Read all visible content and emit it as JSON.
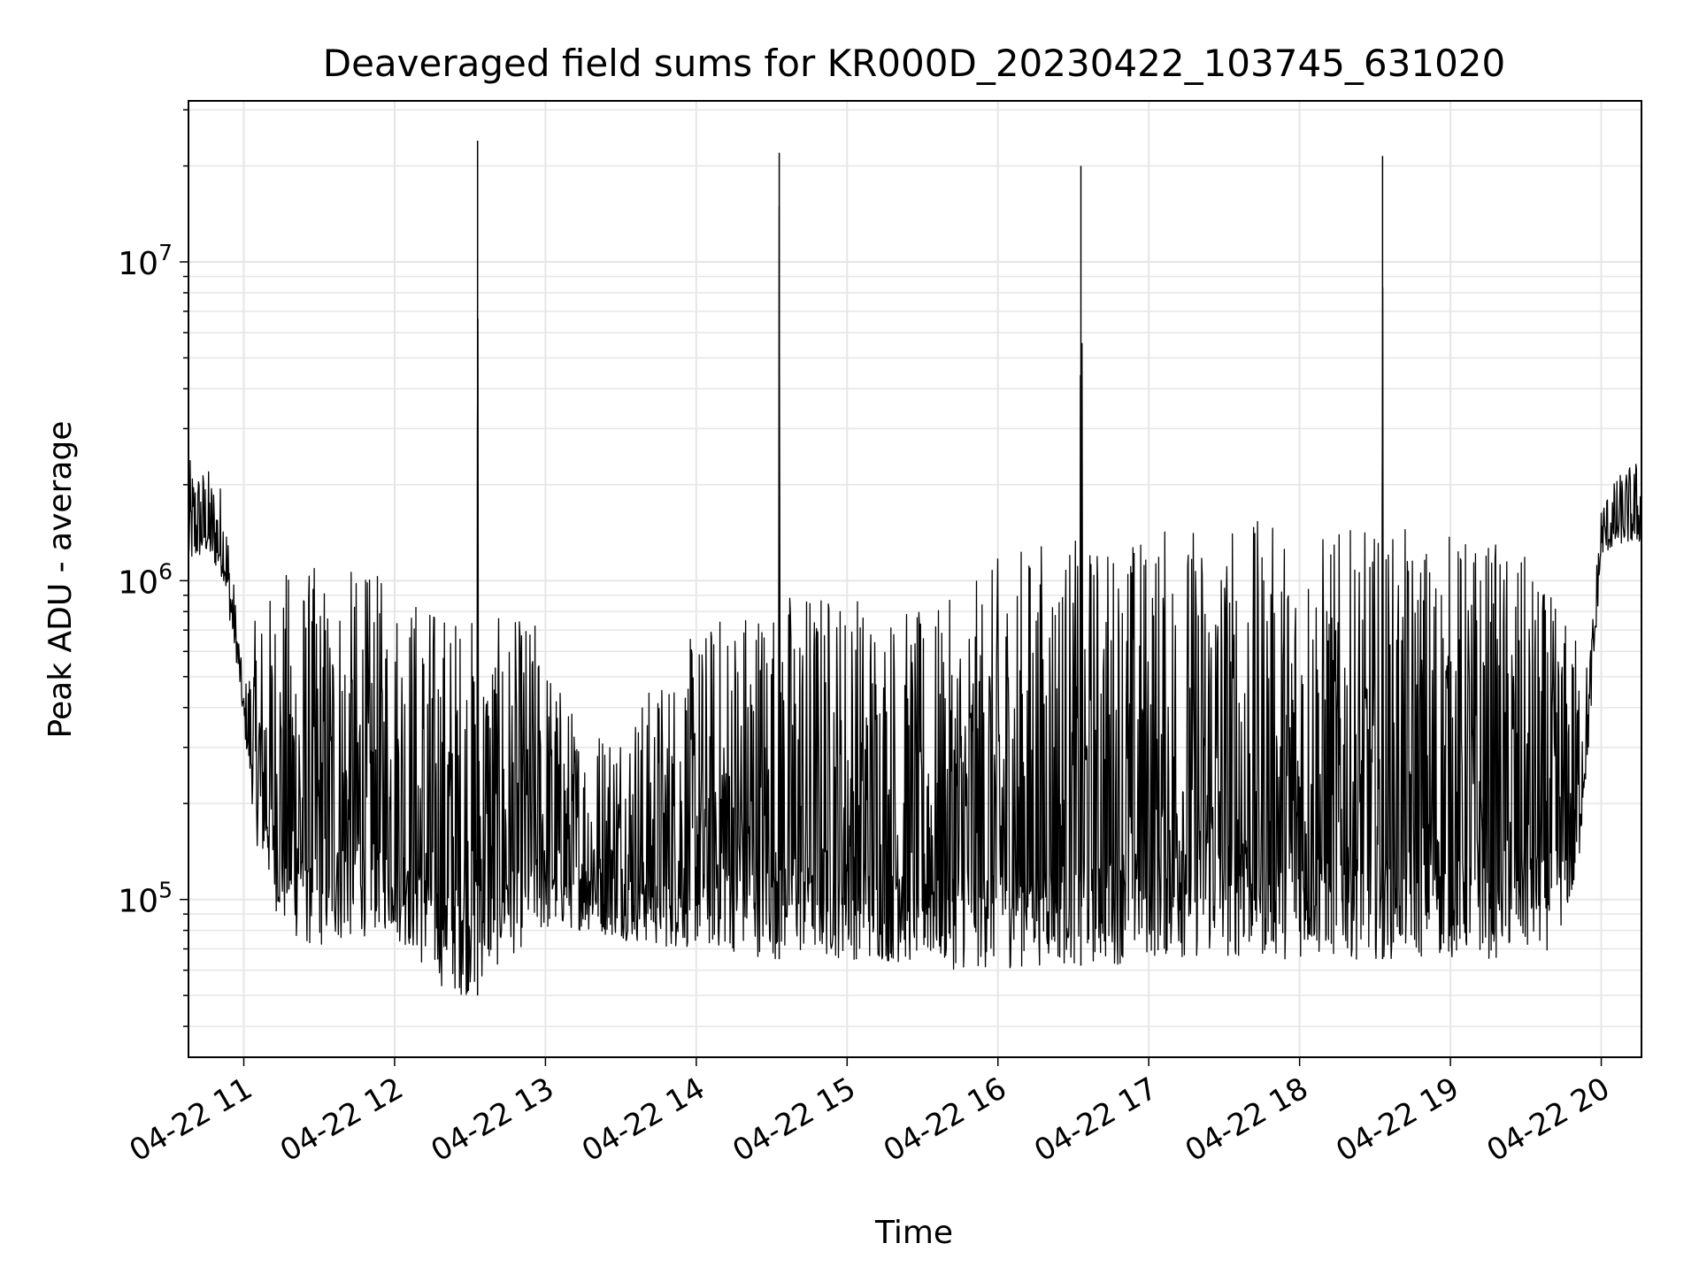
{
  "chart_data": {
    "type": "line",
    "title": "Deaveraged field sums for KR000D_20230422_103745_631020",
    "xlabel": "Time",
    "ylabel": "Peak ADU - average",
    "x_axis": {
      "kind": "time",
      "range": [
        "2023-04-22T10:38",
        "2023-04-22T20:16"
      ],
      "ticks": [
        {
          "label": "04-22 11",
          "time": "2023-04-22T11:00"
        },
        {
          "label": "04-22 12",
          "time": "2023-04-22T12:00"
        },
        {
          "label": "04-22 13",
          "time": "2023-04-22T13:00"
        },
        {
          "label": "04-22 14",
          "time": "2023-04-22T14:00"
        },
        {
          "label": "04-22 15",
          "time": "2023-04-22T15:00"
        },
        {
          "label": "04-22 16",
          "time": "2023-04-22T16:00"
        },
        {
          "label": "04-22 17",
          "time": "2023-04-22T17:00"
        },
        {
          "label": "04-22 18",
          "time": "2023-04-22T18:00"
        },
        {
          "label": "04-22 19",
          "time": "2023-04-22T19:00"
        },
        {
          "label": "04-22 20",
          "time": "2023-04-22T20:00"
        }
      ]
    },
    "y_axis": {
      "scale": "log",
      "range": [
        32000,
        32000000
      ],
      "ticks": [
        {
          "base": "10",
          "exp": "5",
          "value": 100000
        },
        {
          "base": "10",
          "exp": "6",
          "value": 1000000
        },
        {
          "base": "10",
          "exp": "7",
          "value": 10000000
        }
      ]
    },
    "grid": true,
    "line_color": "#000000",
    "grid_color": "#e6e6e6",
    "series": [
      {
        "x": [
          "2023-04-22T10:38",
          "2023-04-22T10:45",
          "2023-04-22T10:52",
          "2023-04-22T10:55",
          "2023-04-22T10:58",
          "2023-04-22T11:00",
          "2023-04-22T11:05",
          "2023-04-22T11:15",
          "2023-04-22T11:25",
          "2023-04-22T11:35",
          "2023-04-22T11:45",
          "2023-04-22T11:55",
          "2023-04-22T12:05",
          "2023-04-22T12:15",
          "2023-04-22T12:25",
          "2023-04-22T12:32",
          "2023-04-22T12:33",
          "2023-04-22T12:34",
          "2023-04-22T12:45",
          "2023-04-22T12:55",
          "2023-04-22T13:05",
          "2023-04-22T13:15",
          "2023-04-22T13:30",
          "2023-04-22T13:45",
          "2023-04-22T14:00",
          "2023-04-22T14:15",
          "2023-04-22T14:30",
          "2023-04-22T14:32",
          "2023-04-22T14:33",
          "2023-04-22T14:34",
          "2023-04-22T14:45",
          "2023-04-22T15:00",
          "2023-04-22T15:15",
          "2023-04-22T15:30",
          "2023-04-22T15:45",
          "2023-04-22T16:00",
          "2023-04-22T16:15",
          "2023-04-22T16:30",
          "2023-04-22T16:32",
          "2023-04-22T16:33",
          "2023-04-22T16:34",
          "2023-04-22T16:45",
          "2023-04-22T17:00",
          "2023-04-22T17:15",
          "2023-04-22T17:30",
          "2023-04-22T17:45",
          "2023-04-22T18:00",
          "2023-04-22T18:15",
          "2023-04-22T18:30",
          "2023-04-22T18:32",
          "2023-04-22T18:33",
          "2023-04-22T18:34",
          "2023-04-22T18:45",
          "2023-04-22T19:00",
          "2023-04-22T19:15",
          "2023-04-22T19:30",
          "2023-04-22T19:40",
          "2023-04-22T19:50",
          "2023-04-22T19:55",
          "2023-04-22T20:00",
          "2023-04-22T20:08",
          "2023-04-22T20:16"
        ],
        "upper": [
          2400000,
          2300000,
          2000000,
          1200000,
          700000,
          450000,
          800000,
          1100000,
          1150000,
          1100000,
          1100000,
          1050000,
          1000000,
          900000,
          850000,
          800000,
          24000000,
          800000,
          750000,
          800000,
          500000,
          350000,
          400000,
          500000,
          700000,
          900000,
          1000000,
          1000000,
          22000000,
          1000000,
          1000000,
          1000000,
          900000,
          800000,
          900000,
          1200000,
          1400000,
          1400000,
          1400000,
          20000000,
          1400000,
          1400000,
          1500000,
          1550000,
          1600000,
          1550000,
          1500000,
          1450000,
          1450000,
          1450000,
          21500000,
          1450000,
          1450000,
          1450000,
          1400000,
          1200000,
          900000,
          700000,
          550000,
          1800000,
          2200000,
          2500000
        ],
        "lower": [
          1100000,
          1200000,
          1000000,
          700000,
          500000,
          350000,
          150000,
          80000,
          70000,
          70000,
          75000,
          80000,
          70000,
          55000,
          50000,
          50000,
          50000,
          55000,
          65000,
          75000,
          80000,
          80000,
          75000,
          70000,
          70000,
          68000,
          65000,
          65000,
          65000,
          65000,
          65000,
          65000,
          63000,
          62000,
          60000,
          60000,
          62000,
          62000,
          62000,
          62000,
          62000,
          62000,
          65000,
          65000,
          65000,
          65000,
          65000,
          65000,
          65000,
          65000,
          65000,
          65000,
          65000,
          65000,
          65000,
          65000,
          70000,
          100000,
          300000,
          1200000,
          1300000,
          1300000
        ]
      }
    ]
  }
}
